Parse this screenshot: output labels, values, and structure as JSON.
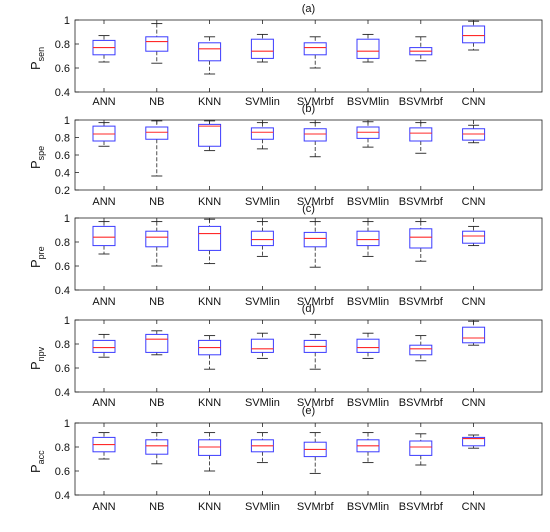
{
  "colors": {
    "box": "#3b3bff",
    "median": "#ff2a2a",
    "whisker": "#222222",
    "frame": "#222222"
  },
  "categories": [
    "ANN",
    "NB",
    "KNN",
    "SVMlin",
    "SVMrbf",
    "BSVMlin",
    "BSVMrbf",
    "CNN"
  ],
  "chart_data": [
    {
      "type": "box",
      "title": "(a)",
      "ylabel": "P",
      "ylabel_sub": "sen",
      "ylim": [
        0.4,
        1.0
      ],
      "yticks": [
        "0.4",
        "0.6",
        "0.8",
        "1"
      ],
      "yticks_num": [
        0.4,
        0.6,
        0.8,
        1.0
      ],
      "boxes": [
        {
          "min": 0.65,
          "q1": 0.71,
          "median": 0.77,
          "q3": 0.83,
          "max": 0.87
        },
        {
          "min": 0.64,
          "q1": 0.74,
          "median": 0.82,
          "q3": 0.86,
          "max": 0.97
        },
        {
          "min": 0.55,
          "q1": 0.66,
          "median": 0.76,
          "q3": 0.81,
          "max": 0.86
        },
        {
          "min": 0.65,
          "q1": 0.68,
          "median": 0.74,
          "q3": 0.84,
          "max": 0.88
        },
        {
          "min": 0.6,
          "q1": 0.71,
          "median": 0.77,
          "q3": 0.81,
          "max": 0.86
        },
        {
          "min": 0.65,
          "q1": 0.68,
          "median": 0.74,
          "q3": 0.84,
          "max": 0.88
        },
        {
          "min": 0.66,
          "q1": 0.71,
          "median": 0.74,
          "q3": 0.77,
          "max": 0.86
        },
        {
          "min": 0.75,
          "q1": 0.81,
          "median": 0.87,
          "q3": 0.95,
          "max": 0.99
        }
      ]
    },
    {
      "type": "box",
      "title": "(b)",
      "ylabel": "P",
      "ylabel_sub": "spe",
      "ylim": [
        0.2,
        1.0
      ],
      "yticks": [
        "0.2",
        "0.4",
        "0.6",
        "0.8",
        "1"
      ],
      "yticks_num": [
        0.2,
        0.4,
        0.6,
        0.8,
        1.0
      ],
      "boxes": [
        {
          "min": 0.7,
          "q1": 0.76,
          "median": 0.84,
          "q3": 0.93,
          "max": 0.97
        },
        {
          "min": 0.36,
          "q1": 0.78,
          "median": 0.86,
          "q3": 0.92,
          "max": 0.99
        },
        {
          "min": 0.65,
          "q1": 0.7,
          "median": 0.93,
          "q3": 0.95,
          "max": 0.99
        },
        {
          "min": 0.67,
          "q1": 0.78,
          "median": 0.86,
          "q3": 0.91,
          "max": 0.97
        },
        {
          "min": 0.58,
          "q1": 0.76,
          "median": 0.84,
          "q3": 0.9,
          "max": 0.97
        },
        {
          "min": 0.69,
          "q1": 0.79,
          "median": 0.86,
          "q3": 0.92,
          "max": 0.98
        },
        {
          "min": 0.62,
          "q1": 0.76,
          "median": 0.85,
          "q3": 0.91,
          "max": 0.97
        },
        {
          "min": 0.74,
          "q1": 0.77,
          "median": 0.84,
          "q3": 0.9,
          "max": 0.94
        }
      ]
    },
    {
      "type": "box",
      "title": "(c)",
      "ylabel": "P",
      "ylabel_sub": "pre",
      "ylim": [
        0.4,
        1.0
      ],
      "yticks": [
        "0.4",
        "0.6",
        "0.8",
        "1"
      ],
      "yticks_num": [
        0.4,
        0.6,
        0.8,
        1.0
      ],
      "boxes": [
        {
          "min": 0.7,
          "q1": 0.77,
          "median": 0.84,
          "q3": 0.93,
          "max": 0.97
        },
        {
          "min": 0.6,
          "q1": 0.76,
          "median": 0.84,
          "q3": 0.89,
          "max": 0.97
        },
        {
          "min": 0.62,
          "q1": 0.73,
          "median": 0.87,
          "q3": 0.93,
          "max": 0.99
        },
        {
          "min": 0.68,
          "q1": 0.77,
          "median": 0.82,
          "q3": 0.89,
          "max": 0.97
        },
        {
          "min": 0.59,
          "q1": 0.76,
          "median": 0.83,
          "q3": 0.88,
          "max": 0.97
        },
        {
          "min": 0.68,
          "q1": 0.77,
          "median": 0.82,
          "q3": 0.89,
          "max": 0.97
        },
        {
          "min": 0.64,
          "q1": 0.75,
          "median": 0.84,
          "q3": 0.91,
          "max": 0.97
        },
        {
          "min": 0.77,
          "q1": 0.79,
          "median": 0.85,
          "q3": 0.89,
          "max": 0.93
        }
      ]
    },
    {
      "type": "box",
      "title": "(d)",
      "ylabel": "P",
      "ylabel_sub": "npv",
      "ylim": [
        0.4,
        1.0
      ],
      "yticks": [
        "0.4",
        "0.6",
        "0.8",
        "1"
      ],
      "yticks_num": [
        0.4,
        0.6,
        0.8,
        1.0
      ],
      "boxes": [
        {
          "min": 0.69,
          "q1": 0.73,
          "median": 0.77,
          "q3": 0.83,
          "max": 0.88
        },
        {
          "min": 0.71,
          "q1": 0.73,
          "median": 0.84,
          "q3": 0.88,
          "max": 0.91
        },
        {
          "min": 0.59,
          "q1": 0.71,
          "median": 0.77,
          "q3": 0.83,
          "max": 0.87
        },
        {
          "min": 0.68,
          "q1": 0.73,
          "median": 0.76,
          "q3": 0.84,
          "max": 0.89
        },
        {
          "min": 0.59,
          "q1": 0.73,
          "median": 0.78,
          "q3": 0.83,
          "max": 0.88
        },
        {
          "min": 0.68,
          "q1": 0.73,
          "median": 0.77,
          "q3": 0.84,
          "max": 0.89
        },
        {
          "min": 0.66,
          "q1": 0.71,
          "median": 0.76,
          "q3": 0.79,
          "max": 0.87
        },
        {
          "min": 0.79,
          "q1": 0.81,
          "median": 0.85,
          "q3": 0.94,
          "max": 0.99
        }
      ]
    },
    {
      "type": "box",
      "title": "(e)",
      "ylabel": "P",
      "ylabel_sub": "acc",
      "ylim": [
        0.4,
        1.0
      ],
      "yticks": [
        "0.4",
        "0.6",
        "0.8",
        "1"
      ],
      "yticks_num": [
        0.4,
        0.6,
        0.8,
        1.0
      ],
      "boxes": [
        {
          "min": 0.7,
          "q1": 0.76,
          "median": 0.82,
          "q3": 0.88,
          "max": 0.92
        },
        {
          "min": 0.66,
          "q1": 0.74,
          "median": 0.81,
          "q3": 0.86,
          "max": 0.92
        },
        {
          "min": 0.6,
          "q1": 0.73,
          "median": 0.8,
          "q3": 0.86,
          "max": 0.92
        },
        {
          "min": 0.67,
          "q1": 0.76,
          "median": 0.81,
          "q3": 0.86,
          "max": 0.92
        },
        {
          "min": 0.58,
          "q1": 0.72,
          "median": 0.78,
          "q3": 0.84,
          "max": 0.92
        },
        {
          "min": 0.67,
          "q1": 0.76,
          "median": 0.81,
          "q3": 0.86,
          "max": 0.92
        },
        {
          "min": 0.65,
          "q1": 0.73,
          "median": 0.8,
          "q3": 0.85,
          "max": 0.91
        },
        {
          "min": 0.79,
          "q1": 0.81,
          "median": 0.87,
          "q3": 0.88,
          "max": 0.9
        }
      ]
    }
  ]
}
